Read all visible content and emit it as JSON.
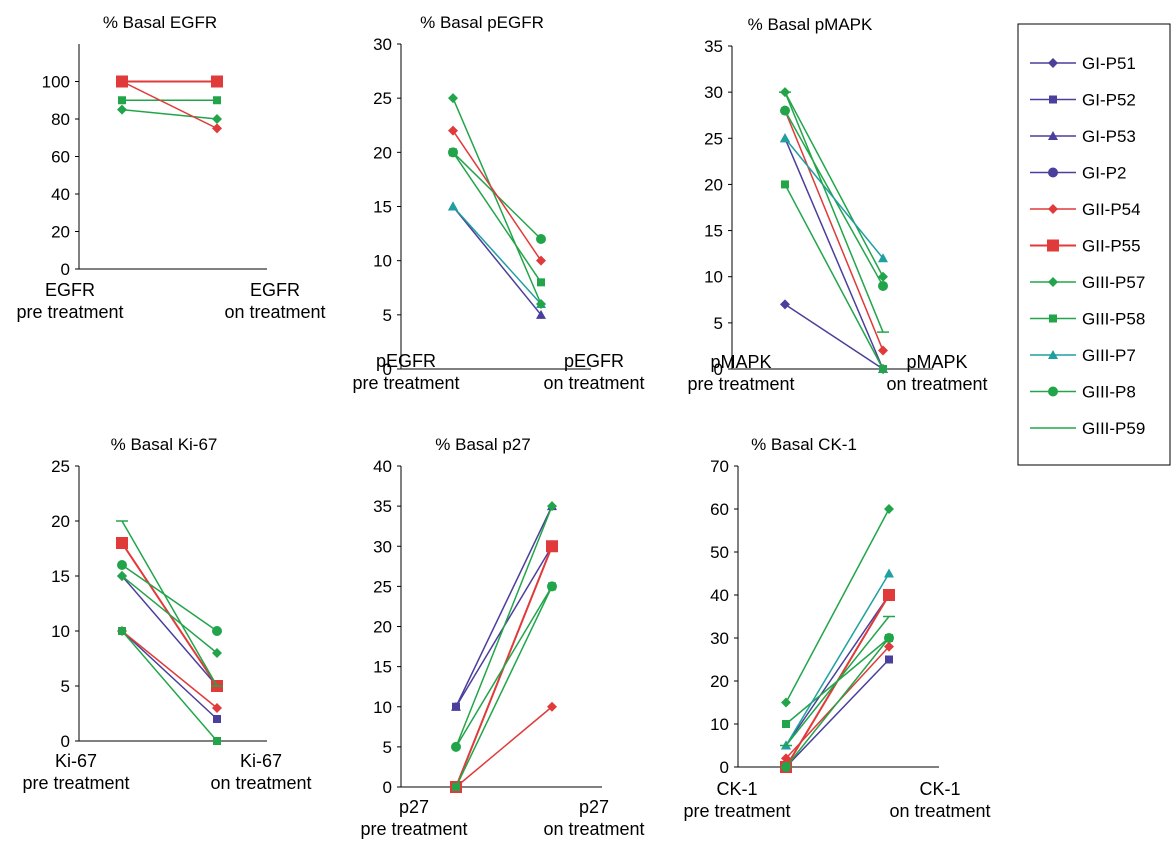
{
  "legend": {
    "items": [
      {
        "name": "GI-P51",
        "color": "#4a3f9c",
        "marker": "diamond",
        "size": "normal"
      },
      {
        "name": "GI-P52",
        "color": "#4a3f9c",
        "marker": "square",
        "size": "normal"
      },
      {
        "name": "GI-P53",
        "color": "#4a3f9c",
        "marker": "triangle",
        "size": "normal"
      },
      {
        "name": "GI-P2",
        "color": "#4a3f9c",
        "marker": "circle",
        "size": "normal"
      },
      {
        "name": "GII-P54",
        "color": "#e03a3a",
        "marker": "diamond",
        "size": "normal"
      },
      {
        "name": "GII-P55",
        "color": "#e03a3a",
        "marker": "square",
        "size": "large"
      },
      {
        "name": "GIII-P57",
        "color": "#22a54a",
        "marker": "diamond",
        "size": "normal"
      },
      {
        "name": "GIII-P58",
        "color": "#22a54a",
        "marker": "square",
        "size": "normal"
      },
      {
        "name": "GIII-P7",
        "color": "#1e9fa0",
        "marker": "triangle",
        "size": "normal"
      },
      {
        "name": "GIII-P8",
        "color": "#22a54a",
        "marker": "circle",
        "size": "normal"
      },
      {
        "name": "GIII-P59",
        "color": "#22a54a",
        "marker": "dash",
        "size": "normal"
      }
    ]
  },
  "chart_data": [
    {
      "type": "line",
      "title": "% Basal EGFR",
      "categories": [
        [
          "EGFR",
          "pre treatment"
        ],
        [
          "EGFR",
          "on treatment"
        ]
      ],
      "ylim": [
        0,
        120
      ],
      "yticks": [
        0,
        20,
        40,
        60,
        80,
        100
      ],
      "series": [
        {
          "name": "GIII-P59",
          "values": [
            100,
            100
          ]
        },
        {
          "name": "GIII-P57",
          "values": [
            85,
            80
          ]
        },
        {
          "name": "GIII-P58",
          "values": [
            90,
            90
          ]
        },
        {
          "name": "GII-P54",
          "values": [
            100,
            75
          ]
        },
        {
          "name": "GII-P55",
          "values": [
            100,
            100
          ]
        }
      ]
    },
    {
      "type": "line",
      "title": "% Basal pEGFR",
      "categories": [
        [
          "pEGFR",
          "pre treatment"
        ],
        [
          "pEGFR",
          "on treatment"
        ]
      ],
      "ylim": [
        0,
        30
      ],
      "yticks": [
        0,
        5,
        10,
        15,
        20,
        25,
        30
      ],
      "series": [
        {
          "name": "GI-P53",
          "values": [
            15,
            5
          ]
        },
        {
          "name": "GIII-P7",
          "values": [
            15,
            6
          ]
        },
        {
          "name": "GIII-P57",
          "values": [
            25,
            6
          ]
        },
        {
          "name": "GIII-P58",
          "values": [
            20,
            8
          ]
        },
        {
          "name": "GIII-P8",
          "values": [
            20,
            12
          ]
        },
        {
          "name": "GII-P54",
          "values": [
            22,
            10
          ]
        }
      ]
    },
    {
      "type": "line",
      "title": "% Basal pMAPK",
      "categories": [
        [
          "pMAPK",
          "pre treatment"
        ],
        [
          "pMAPK",
          "on treatment"
        ]
      ],
      "ylim": [
        0,
        35
      ],
      "yticks": [
        0,
        5,
        10,
        15,
        20,
        25,
        30,
        35
      ],
      "series": [
        {
          "name": "GI-P51",
          "values": [
            7,
            0
          ]
        },
        {
          "name": "GI-P53",
          "values": [
            25,
            0
          ]
        },
        {
          "name": "GIII-P58",
          "values": [
            20,
            0
          ]
        },
        {
          "name": "GII-P54",
          "values": [
            28,
            2
          ]
        },
        {
          "name": "GIII-P57",
          "values": [
            30,
            10
          ]
        },
        {
          "name": "GIII-P8",
          "values": [
            28,
            9
          ]
        },
        {
          "name": "GIII-P7",
          "values": [
            25,
            12
          ]
        },
        {
          "name": "GIII-P59",
          "values": [
            30,
            4
          ]
        }
      ]
    },
    {
      "type": "line",
      "title": "% Basal Ki-67",
      "categories": [
        [
          "Ki-67",
          "pre treatment"
        ],
        [
          "Ki-67",
          "on treatment"
        ]
      ],
      "ylim": [
        0,
        25
      ],
      "yticks": [
        0,
        5,
        10,
        15,
        20,
        25
      ],
      "series": [
        {
          "name": "GI-P52",
          "values": [
            10,
            2
          ]
        },
        {
          "name": "GI-P51",
          "values": [
            15,
            5
          ]
        },
        {
          "name": "GII-P54",
          "values": [
            10,
            3
          ]
        },
        {
          "name": "GII-P55",
          "values": [
            18,
            5
          ]
        },
        {
          "name": "GIII-P58",
          "values": [
            10,
            0
          ]
        },
        {
          "name": "GIII-P57",
          "values": [
            15,
            8
          ]
        },
        {
          "name": "GIII-P8",
          "values": [
            16,
            10
          ]
        },
        {
          "name": "GIII-P59",
          "values": [
            20,
            5
          ]
        }
      ]
    },
    {
      "type": "line",
      "title": "% Basal p27",
      "categories": [
        [
          "p27",
          "pre treatment"
        ],
        [
          "p27",
          "on treatment"
        ]
      ],
      "ylim": [
        0,
        40
      ],
      "yticks": [
        0,
        5,
        10,
        15,
        20,
        25,
        30,
        35,
        40
      ],
      "series": [
        {
          "name": "GI-P53",
          "values": [
            10,
            35
          ]
        },
        {
          "name": "GI-P52",
          "values": [
            10,
            30
          ]
        },
        {
          "name": "GII-P54",
          "values": [
            0,
            10
          ]
        },
        {
          "name": "GII-P55",
          "values": [
            0,
            30
          ]
        },
        {
          "name": "GIII-P57",
          "values": [
            5,
            35
          ]
        },
        {
          "name": "GIII-P8",
          "values": [
            5,
            25
          ]
        },
        {
          "name": "GIII-P58",
          "values": [
            0,
            25
          ]
        }
      ]
    },
    {
      "type": "line",
      "title": "% Basal CK-1",
      "categories": [
        [
          "CK-1",
          "pre treatment"
        ],
        [
          "CK-1",
          "on treatment"
        ]
      ],
      "ylim": [
        0,
        70
      ],
      "yticks": [
        0,
        10,
        20,
        30,
        40,
        50,
        60,
        70
      ],
      "series": [
        {
          "name": "GI-P52",
          "values": [
            0,
            25
          ]
        },
        {
          "name": "GI-P53",
          "values": [
            5,
            40
          ]
        },
        {
          "name": "GII-P54",
          "values": [
            2,
            28
          ]
        },
        {
          "name": "GII-P55",
          "values": [
            0,
            40
          ]
        },
        {
          "name": "GIII-P57",
          "values": [
            15,
            60
          ]
        },
        {
          "name": "GIII-P58",
          "values": [
            10,
            30
          ]
        },
        {
          "name": "GIII-P7",
          "values": [
            5,
            45
          ]
        },
        {
          "name": "GIII-P8",
          "values": [
            0,
            30
          ]
        },
        {
          "name": "GIII-P59",
          "values": [
            5,
            35
          ]
        }
      ]
    }
  ]
}
